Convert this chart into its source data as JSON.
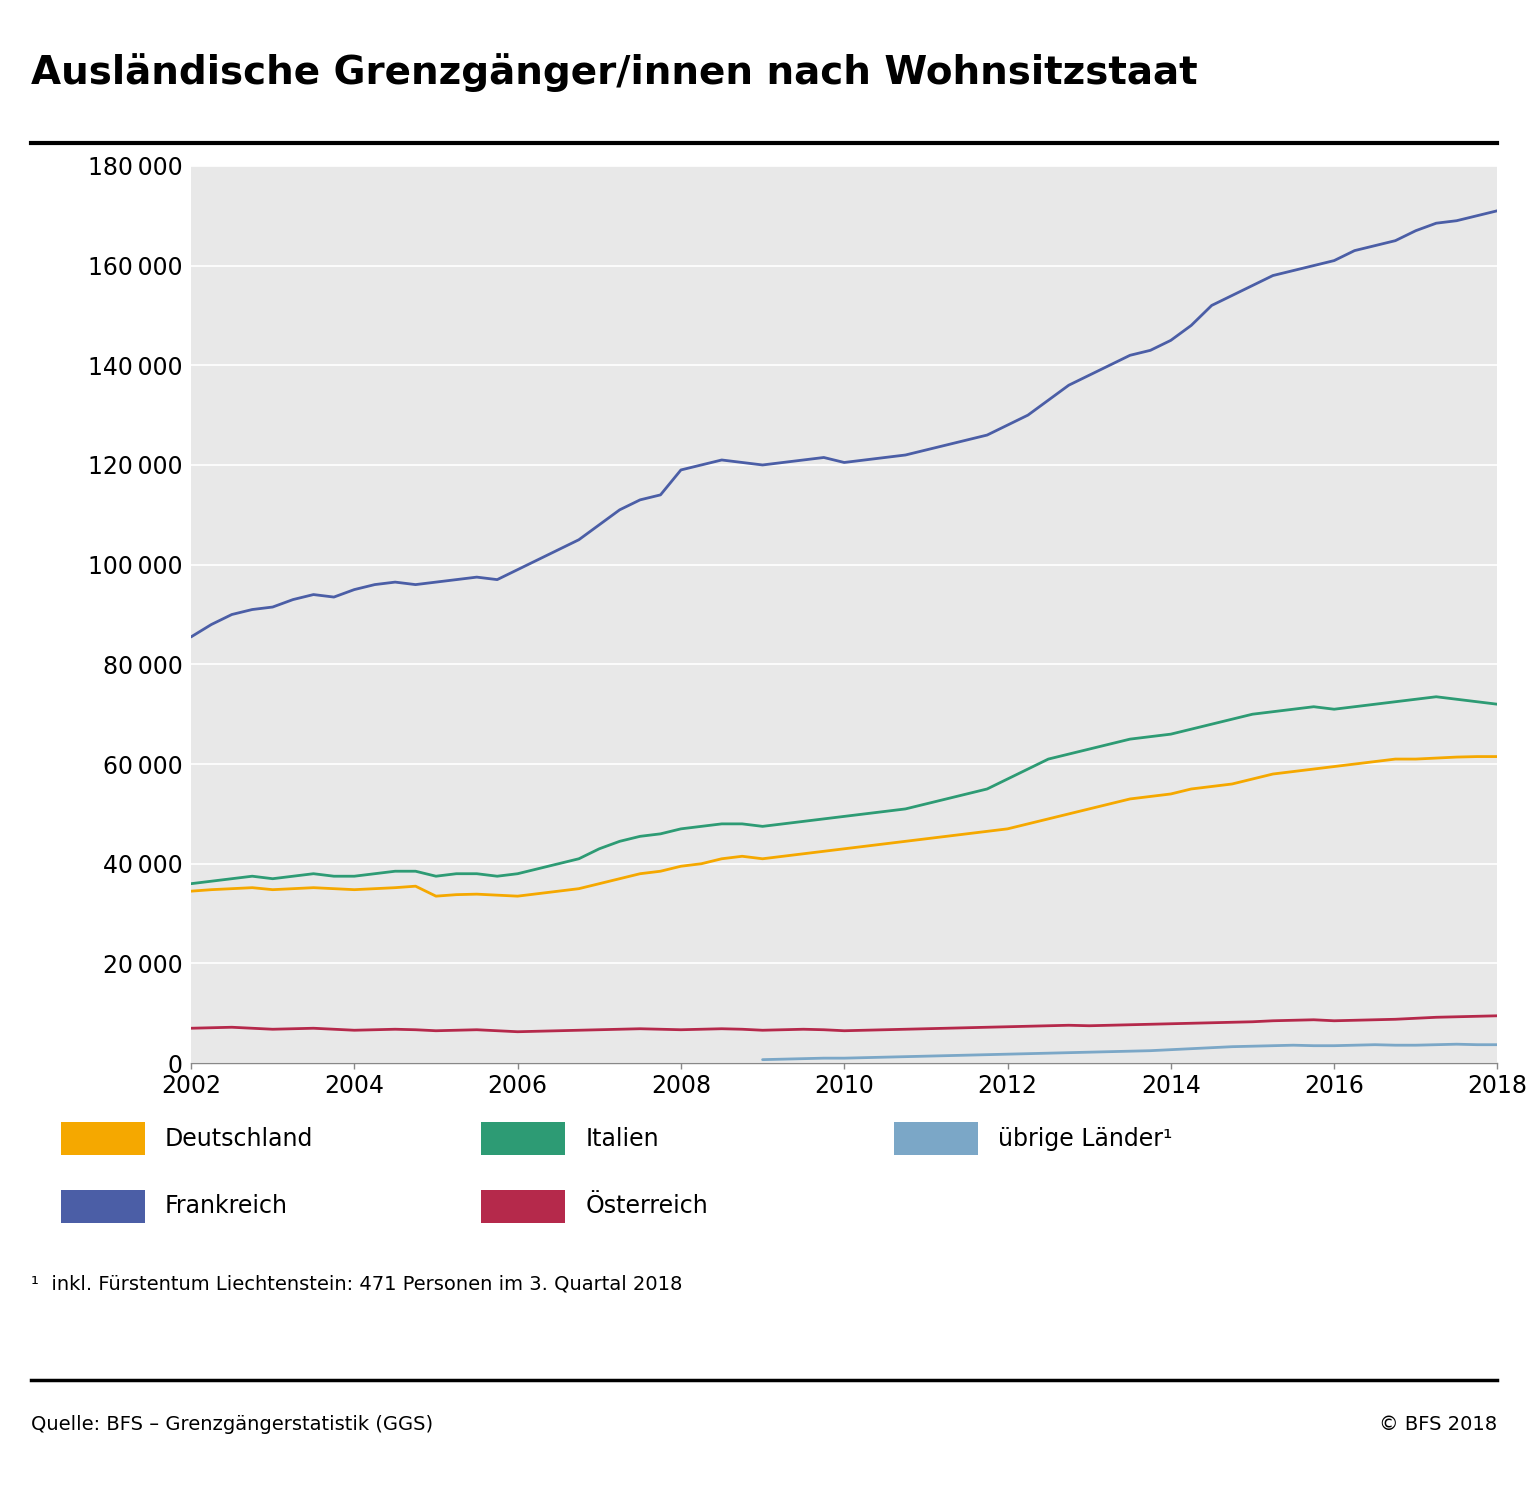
{
  "title": "Ausländische Grenzgänger/innen nach Wohnsitzstaat",
  "background_color": "#e8e8e8",
  "figure_background": "#ffffff",
  "xlim": [
    2002,
    2018
  ],
  "ylim": [
    0,
    180000
  ],
  "yticks": [
    0,
    20000,
    40000,
    60000,
    80000,
    100000,
    120000,
    140000,
    160000,
    180000
  ],
  "xticks": [
    2002,
    2004,
    2006,
    2008,
    2010,
    2012,
    2014,
    2016,
    2018
  ],
  "footnote": "¹  inkl. Fürstentum Liechtenstein: 471 Personen im 3. Quartal 2018",
  "source_left": "Quelle: BFS – Grenzgängerstatistik (GGS)",
  "source_right": "© BFS 2018",
  "series": {
    "Deutschland": {
      "color": "#F5A800",
      "data_x": [
        2002.0,
        2002.25,
        2002.5,
        2002.75,
        2003.0,
        2003.25,
        2003.5,
        2003.75,
        2004.0,
        2004.25,
        2004.5,
        2004.75,
        2005.0,
        2005.25,
        2005.5,
        2005.75,
        2006.0,
        2006.25,
        2006.5,
        2006.75,
        2007.0,
        2007.25,
        2007.5,
        2007.75,
        2008.0,
        2008.25,
        2008.5,
        2008.75,
        2009.0,
        2009.25,
        2009.5,
        2009.75,
        2010.0,
        2010.25,
        2010.5,
        2010.75,
        2011.0,
        2011.25,
        2011.5,
        2011.75,
        2012.0,
        2012.25,
        2012.5,
        2012.75,
        2013.0,
        2013.25,
        2013.5,
        2013.75,
        2014.0,
        2014.25,
        2014.5,
        2014.75,
        2015.0,
        2015.25,
        2015.5,
        2015.75,
        2016.0,
        2016.25,
        2016.5,
        2016.75,
        2017.0,
        2017.25,
        2017.5,
        2017.75,
        2018.0,
        2018.25,
        2018.5,
        2018.75
      ],
      "data_y": [
        34500,
        34800,
        35000,
        35200,
        34800,
        35000,
        35200,
        35000,
        34800,
        35000,
        35200,
        35500,
        33500,
        33800,
        33900,
        33700,
        33500,
        34000,
        34500,
        35000,
        36000,
        37000,
        38000,
        38500,
        39500,
        40000,
        41000,
        41500,
        41000,
        41500,
        42000,
        42500,
        43000,
        43500,
        44000,
        44500,
        45000,
        45500,
        46000,
        46500,
        47000,
        48000,
        49000,
        50000,
        51000,
        52000,
        53000,
        53500,
        54000,
        55000,
        55500,
        56000,
        57000,
        58000,
        58500,
        59000,
        59500,
        60000,
        60500,
        61000,
        61000,
        61200,
        61400,
        61500,
        61500,
        61300,
        61000,
        60800
      ]
    },
    "Italien": {
      "color": "#2D9B74",
      "data_x": [
        2002.0,
        2002.25,
        2002.5,
        2002.75,
        2003.0,
        2003.25,
        2003.5,
        2003.75,
        2004.0,
        2004.25,
        2004.5,
        2004.75,
        2005.0,
        2005.25,
        2005.5,
        2005.75,
        2006.0,
        2006.25,
        2006.5,
        2006.75,
        2007.0,
        2007.25,
        2007.5,
        2007.75,
        2008.0,
        2008.25,
        2008.5,
        2008.75,
        2009.0,
        2009.25,
        2009.5,
        2009.75,
        2010.0,
        2010.25,
        2010.5,
        2010.75,
        2011.0,
        2011.25,
        2011.5,
        2011.75,
        2012.0,
        2012.25,
        2012.5,
        2012.75,
        2013.0,
        2013.25,
        2013.5,
        2013.75,
        2014.0,
        2014.25,
        2014.5,
        2014.75,
        2015.0,
        2015.25,
        2015.5,
        2015.75,
        2016.0,
        2016.25,
        2016.5,
        2016.75,
        2017.0,
        2017.25,
        2017.5,
        2017.75,
        2018.0,
        2018.25,
        2018.5,
        2018.75
      ],
      "data_y": [
        36000,
        36500,
        37000,
        37500,
        37000,
        37500,
        38000,
        37500,
        37500,
        38000,
        38500,
        38500,
        37500,
        38000,
        38000,
        37500,
        38000,
        39000,
        40000,
        41000,
        43000,
        44500,
        45500,
        46000,
        47000,
        47500,
        48000,
        48000,
        47500,
        48000,
        48500,
        49000,
        49500,
        50000,
        50500,
        51000,
        52000,
        53000,
        54000,
        55000,
        57000,
        59000,
        61000,
        62000,
        63000,
        64000,
        65000,
        65500,
        66000,
        67000,
        68000,
        69000,
        70000,
        70500,
        71000,
        71500,
        71000,
        71500,
        72000,
        72500,
        73000,
        73500,
        73000,
        72500,
        72000,
        72000,
        71500,
        71000
      ]
    },
    "Frankreich": {
      "color": "#4B5EA6",
      "data_x": [
        2002.0,
        2002.25,
        2002.5,
        2002.75,
        2003.0,
        2003.25,
        2003.5,
        2003.75,
        2004.0,
        2004.25,
        2004.5,
        2004.75,
        2005.0,
        2005.25,
        2005.5,
        2005.75,
        2006.0,
        2006.25,
        2006.5,
        2006.75,
        2007.0,
        2007.25,
        2007.5,
        2007.75,
        2008.0,
        2008.25,
        2008.5,
        2008.75,
        2009.0,
        2009.25,
        2009.5,
        2009.75,
        2010.0,
        2010.25,
        2010.5,
        2010.75,
        2011.0,
        2011.25,
        2011.5,
        2011.75,
        2012.0,
        2012.25,
        2012.5,
        2012.75,
        2013.0,
        2013.25,
        2013.5,
        2013.75,
        2014.0,
        2014.25,
        2014.5,
        2014.75,
        2015.0,
        2015.25,
        2015.5,
        2015.75,
        2016.0,
        2016.25,
        2016.5,
        2016.75,
        2017.0,
        2017.25,
        2017.5,
        2017.75,
        2018.0,
        2018.25,
        2018.5,
        2018.75
      ],
      "data_y": [
        85500,
        88000,
        90000,
        91000,
        91500,
        93000,
        94000,
        93500,
        95000,
        96000,
        96500,
        96000,
        96500,
        97000,
        97500,
        97000,
        99000,
        101000,
        103000,
        105000,
        108000,
        111000,
        113000,
        114000,
        119000,
        120000,
        121000,
        120500,
        120000,
        120500,
        121000,
        121500,
        120500,
        121000,
        121500,
        122000,
        123000,
        124000,
        125000,
        126000,
        128000,
        130000,
        133000,
        136000,
        138000,
        140000,
        142000,
        143000,
        145000,
        148000,
        152000,
        154000,
        156000,
        158000,
        159000,
        160000,
        161000,
        163000,
        164000,
        165000,
        167000,
        168500,
        169000,
        170000,
        171000,
        171500,
        171000,
        171000
      ]
    },
    "Osterreich": {
      "color": "#B5294B",
      "data_x": [
        2002.0,
        2002.25,
        2002.5,
        2002.75,
        2003.0,
        2003.25,
        2003.5,
        2003.75,
        2004.0,
        2004.25,
        2004.5,
        2004.75,
        2005.0,
        2005.25,
        2005.5,
        2005.75,
        2006.0,
        2006.25,
        2006.5,
        2006.75,
        2007.0,
        2007.25,
        2007.5,
        2007.75,
        2008.0,
        2008.25,
        2008.5,
        2008.75,
        2009.0,
        2009.25,
        2009.5,
        2009.75,
        2010.0,
        2010.25,
        2010.5,
        2010.75,
        2011.0,
        2011.25,
        2011.5,
        2011.75,
        2012.0,
        2012.25,
        2012.5,
        2012.75,
        2013.0,
        2013.25,
        2013.5,
        2013.75,
        2014.0,
        2014.25,
        2014.5,
        2014.75,
        2015.0,
        2015.25,
        2015.5,
        2015.75,
        2016.0,
        2016.25,
        2016.5,
        2016.75,
        2017.0,
        2017.25,
        2017.5,
        2017.75,
        2018.0,
        2018.25,
        2018.5,
        2018.75
      ],
      "data_y": [
        7000,
        7100,
        7200,
        7000,
        6800,
        6900,
        7000,
        6800,
        6600,
        6700,
        6800,
        6700,
        6500,
        6600,
        6700,
        6500,
        6300,
        6400,
        6500,
        6600,
        6700,
        6800,
        6900,
        6800,
        6700,
        6800,
        6900,
        6800,
        6600,
        6700,
        6800,
        6700,
        6500,
        6600,
        6700,
        6800,
        6900,
        7000,
        7100,
        7200,
        7300,
        7400,
        7500,
        7600,
        7500,
        7600,
        7700,
        7800,
        7900,
        8000,
        8100,
        8200,
        8300,
        8500,
        8600,
        8700,
        8500,
        8600,
        8700,
        8800,
        9000,
        9200,
        9300,
        9400,
        9500,
        9600,
        9700,
        9800
      ]
    },
    "ubrige_Lander": {
      "color": "#7BA7C7",
      "data_x": [
        2009.0,
        2009.25,
        2009.5,
        2009.75,
        2010.0,
        2010.25,
        2010.5,
        2010.75,
        2011.0,
        2011.25,
        2011.5,
        2011.75,
        2012.0,
        2012.25,
        2012.5,
        2012.75,
        2013.0,
        2013.25,
        2013.5,
        2013.75,
        2014.0,
        2014.25,
        2014.5,
        2014.75,
        2015.0,
        2015.25,
        2015.5,
        2015.75,
        2016.0,
        2016.25,
        2016.5,
        2016.75,
        2017.0,
        2017.25,
        2017.5,
        2017.75,
        2018.0,
        2018.25,
        2018.5,
        2018.75
      ],
      "data_y": [
        700,
        800,
        900,
        1000,
        1000,
        1100,
        1200,
        1300,
        1400,
        1500,
        1600,
        1700,
        1800,
        1900,
        2000,
        2100,
        2200,
        2300,
        2400,
        2500,
        2700,
        2900,
        3100,
        3300,
        3400,
        3500,
        3600,
        3500,
        3500,
        3600,
        3700,
        3600,
        3600,
        3700,
        3800,
        3700,
        3700,
        3800,
        3700,
        3500
      ]
    }
  },
  "legend_row1": [
    {
      "key": "Deutschland",
      "label": "Deutschland"
    },
    {
      "key": "Italien",
      "label": "Italien"
    },
    {
      "key": "ubrige_Lander",
      "label": "übrige Länder¹"
    }
  ],
  "legend_row2": [
    {
      "key": "Frankreich",
      "label": "Frankreich"
    },
    {
      "key": "Osterreich",
      "label": "Österreich"
    }
  ]
}
